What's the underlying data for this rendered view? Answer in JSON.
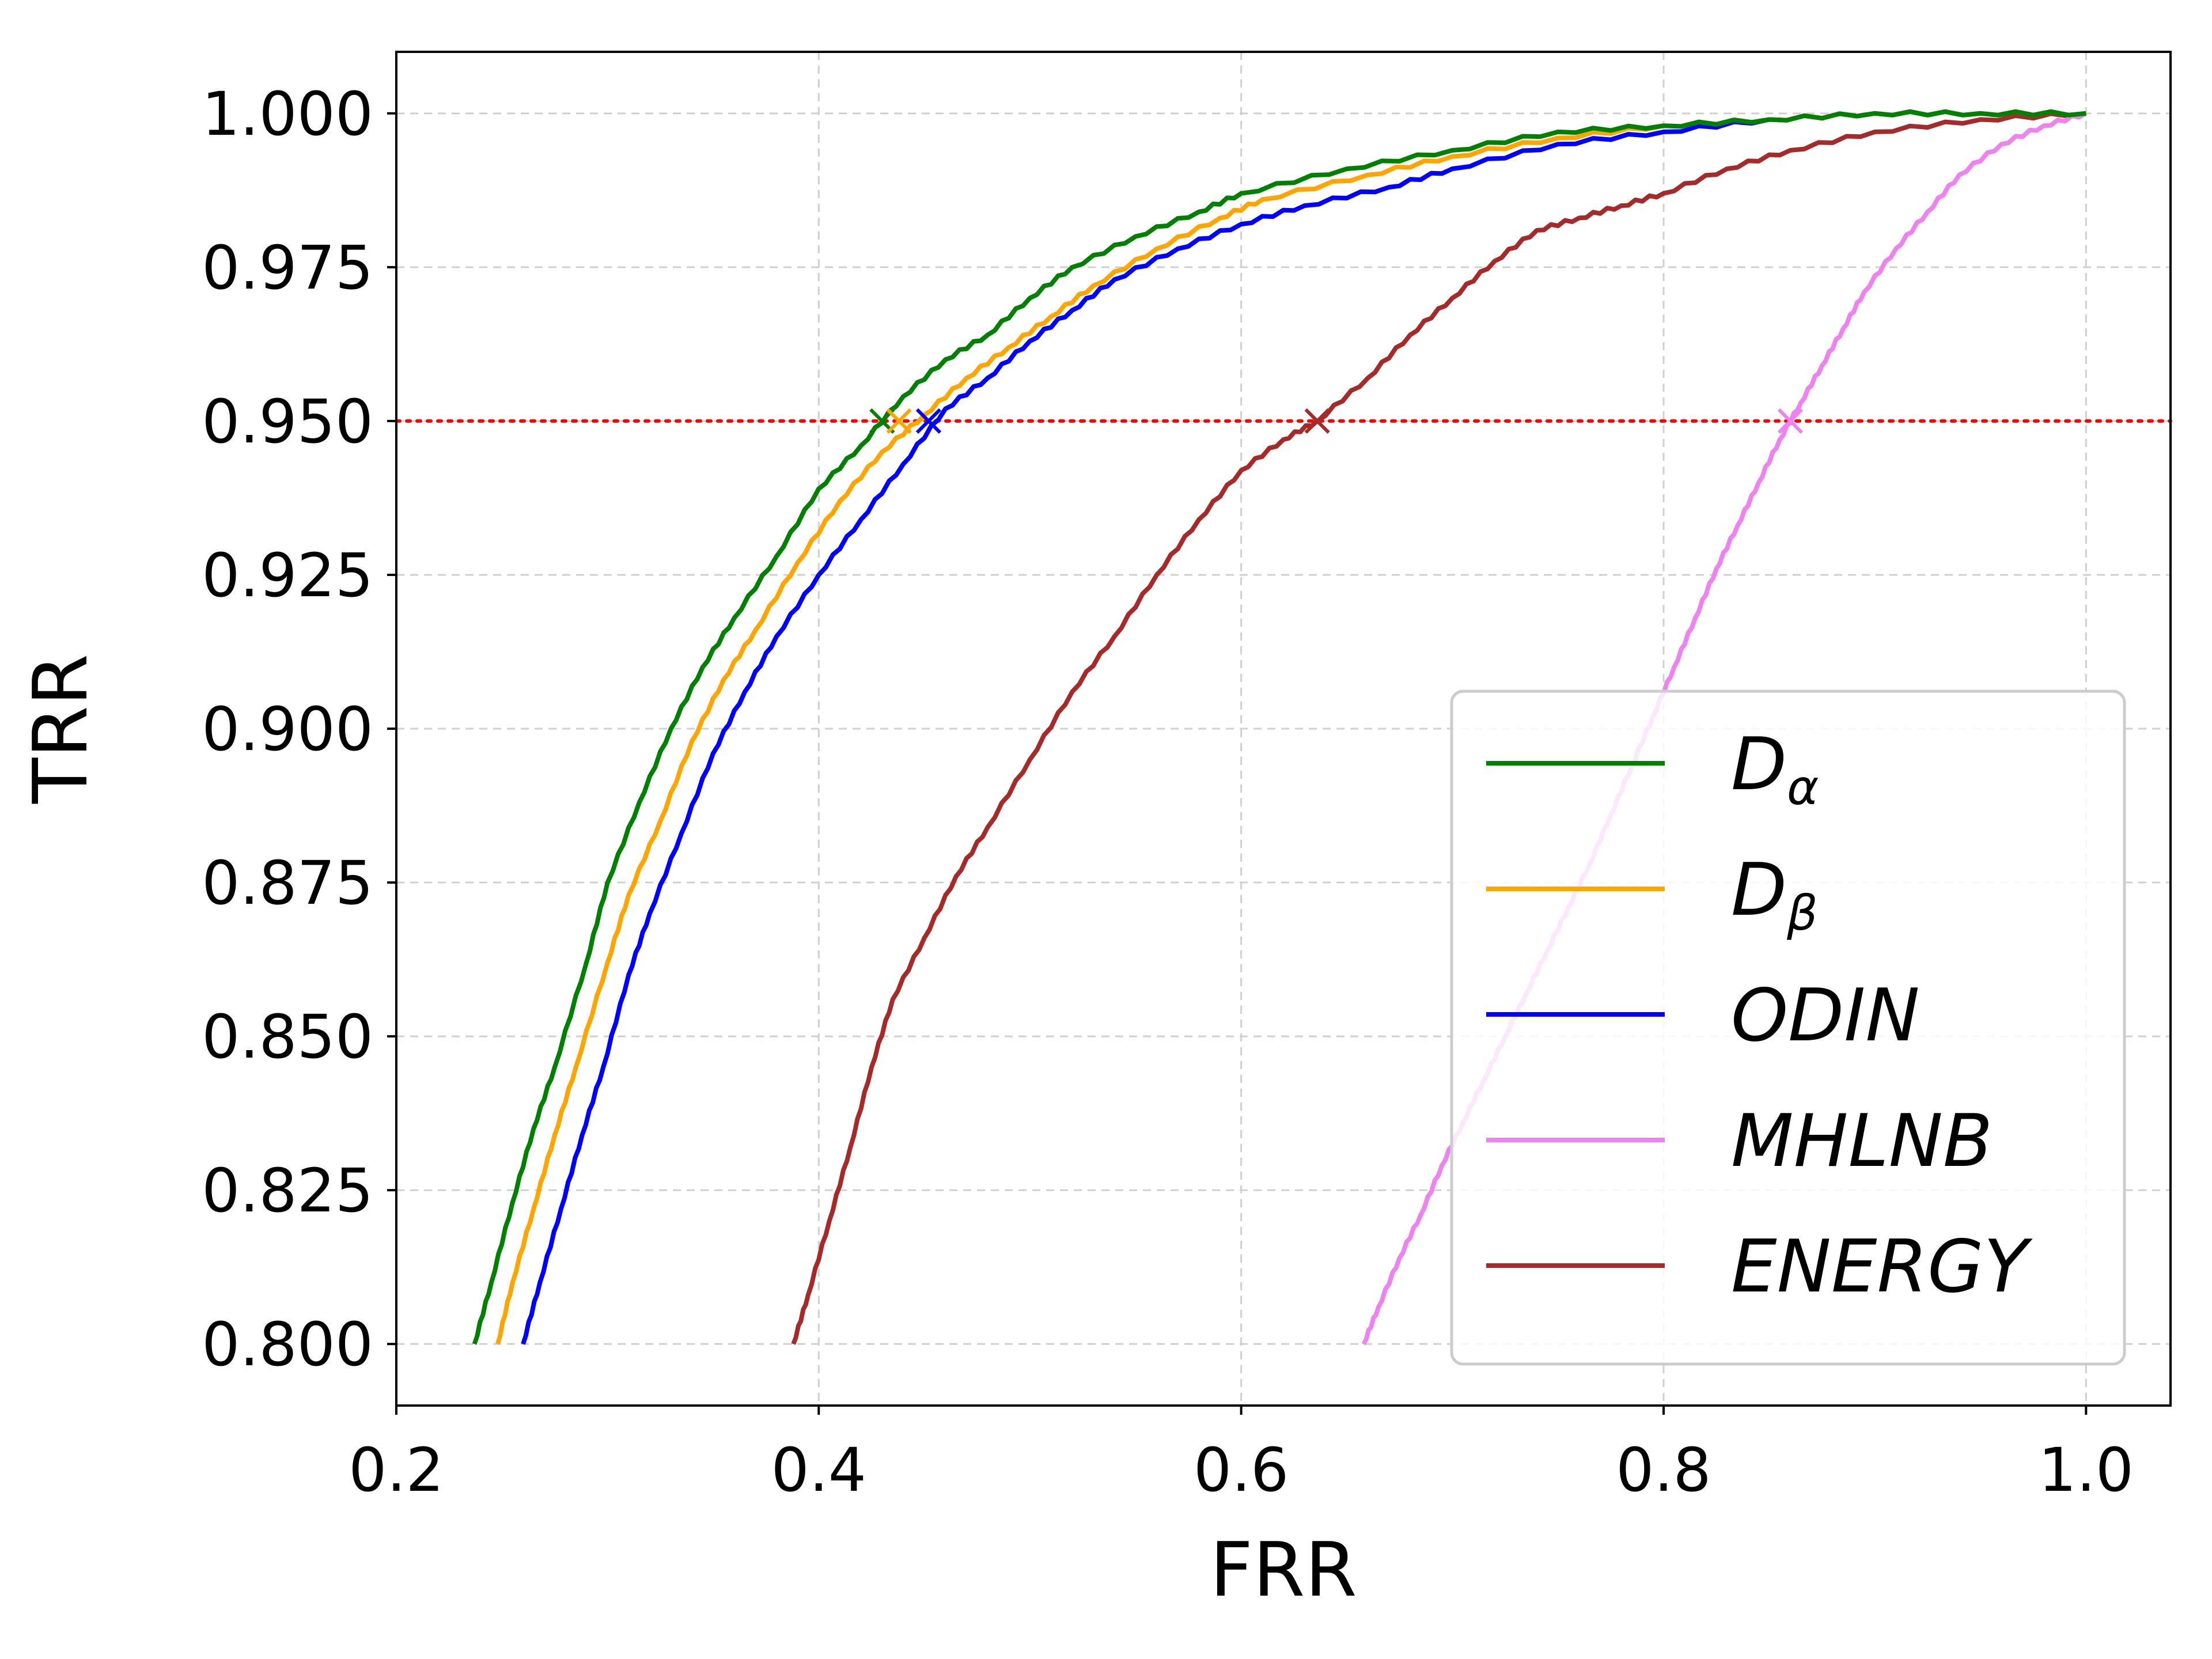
{
  "chart_data": {
    "type": "line",
    "title": "",
    "xlabel": "FRR",
    "ylabel": "TRR",
    "xlim": [
      0.2,
      1.04
    ],
    "ylim": [
      0.79,
      1.01
    ],
    "x_ticks": [
      0.2,
      0.4,
      0.6,
      0.8,
      1.0
    ],
    "x_tick_labels": [
      "0.2",
      "0.4",
      "0.6",
      "0.8",
      "1.0"
    ],
    "y_ticks": [
      0.8,
      0.825,
      0.85,
      0.875,
      0.9,
      0.925,
      0.95,
      0.975,
      1.0
    ],
    "y_tick_labels": [
      "0.800",
      "0.825",
      "0.850",
      "0.875",
      "0.900",
      "0.925",
      "0.950",
      "0.975",
      "1.000"
    ],
    "grid": true,
    "legend_position": "lower-right",
    "reference_line": {
      "y": 0.95,
      "color": "#ff0000",
      "style": "dotted"
    },
    "series": [
      {
        "name": "D_α",
        "legend_main": "D",
        "legend_sub": "α",
        "color": "#008000",
        "marker_x": 0.43,
        "x": [
          0.237,
          0.245,
          0.255,
          0.265,
          0.275,
          0.29,
          0.3,
          0.315,
          0.33,
          0.345,
          0.36,
          0.38,
          0.4,
          0.42,
          0.44,
          0.46,
          0.48,
          0.5,
          0.52,
          0.55,
          0.58,
          0.6,
          0.65,
          0.7,
          0.75,
          0.8,
          0.85,
          0.9,
          0.95,
          1.0
        ],
        "y": [
          0.8,
          0.81,
          0.823,
          0.835,
          0.845,
          0.862,
          0.875,
          0.888,
          0.9,
          0.91,
          0.918,
          0.928,
          0.939,
          0.946,
          0.954,
          0.96,
          0.964,
          0.97,
          0.975,
          0.98,
          0.984,
          0.987,
          0.991,
          0.994,
          0.997,
          0.998,
          0.999,
          1.0,
          1.0,
          1.0
        ]
      },
      {
        "name": "D_β",
        "legend_main": "D",
        "legend_sub": "β",
        "color": "#ffa500",
        "marker_x": 0.438,
        "x": [
          0.248,
          0.255,
          0.265,
          0.275,
          0.285,
          0.3,
          0.31,
          0.325,
          0.34,
          0.355,
          0.37,
          0.39,
          0.41,
          0.43,
          0.45,
          0.47,
          0.49,
          0.51,
          0.53,
          0.56,
          0.59,
          0.61,
          0.66,
          0.7,
          0.75,
          0.8,
          0.85,
          0.9,
          0.95,
          1.0
        ],
        "y": [
          0.8,
          0.81,
          0.822,
          0.834,
          0.845,
          0.862,
          0.873,
          0.885,
          0.898,
          0.908,
          0.916,
          0.927,
          0.937,
          0.945,
          0.951,
          0.957,
          0.962,
          0.967,
          0.972,
          0.978,
          0.983,
          0.986,
          0.99,
          0.993,
          0.996,
          0.998,
          0.999,
          1.0,
          1.0,
          1.0
        ]
      },
      {
        "name": "ODIN",
        "legend_main": "ODIN",
        "legend_sub": "",
        "color": "#0000ff",
        "marker_x": 0.452,
        "x": [
          0.26,
          0.268,
          0.278,
          0.288,
          0.298,
          0.31,
          0.32,
          0.335,
          0.35,
          0.365,
          0.38,
          0.4,
          0.42,
          0.44,
          0.46,
          0.48,
          0.5,
          0.52,
          0.54,
          0.57,
          0.6,
          0.63,
          0.67,
          0.7,
          0.75,
          0.8,
          0.85,
          0.9,
          0.95,
          1.0
        ],
        "y": [
          0.8,
          0.81,
          0.822,
          0.834,
          0.845,
          0.86,
          0.87,
          0.883,
          0.896,
          0.906,
          0.915,
          0.925,
          0.934,
          0.943,
          0.952,
          0.957,
          0.963,
          0.968,
          0.973,
          0.978,
          0.982,
          0.985,
          0.988,
          0.991,
          0.995,
          0.997,
          0.999,
          1.0,
          1.0,
          1.0
        ]
      },
      {
        "name": "MHLNB",
        "legend_main": "MHLNB",
        "legend_sub": "",
        "color": "#ee82ee",
        "marker_x": 0.86,
        "x": [
          0.658,
          0.665,
          0.675,
          0.685,
          0.695,
          0.705,
          0.715,
          0.725,
          0.735,
          0.745,
          0.755,
          0.765,
          0.775,
          0.785,
          0.795,
          0.805,
          0.815,
          0.825,
          0.835,
          0.845,
          0.855,
          0.865,
          0.875,
          0.885,
          0.895,
          0.91,
          0.925,
          0.94,
          0.96,
          0.98,
          1.0
        ],
        "y": [
          0.8,
          0.806,
          0.814,
          0.821,
          0.829,
          0.836,
          0.843,
          0.85,
          0.857,
          0.864,
          0.871,
          0.878,
          0.886,
          0.894,
          0.902,
          0.91,
          0.918,
          0.926,
          0.933,
          0.94,
          0.947,
          0.953,
          0.959,
          0.965,
          0.971,
          0.978,
          0.984,
          0.99,
          0.995,
          0.998,
          1.0
        ]
      },
      {
        "name": "ENERGY",
        "legend_main": "ENERGY",
        "legend_sub": "",
        "color": "#a52a2a",
        "marker_x": 0.636,
        "x": [
          0.388,
          0.395,
          0.405,
          0.415,
          0.425,
          0.435,
          0.45,
          0.465,
          0.48,
          0.5,
          0.52,
          0.54,
          0.56,
          0.58,
          0.6,
          0.62,
          0.636,
          0.66,
          0.68,
          0.7,
          0.72,
          0.74,
          0.76,
          0.78,
          0.8,
          0.83,
          0.86,
          0.9,
          0.95,
          1.0
        ],
        "y": [
          0.8,
          0.808,
          0.82,
          0.832,
          0.845,
          0.856,
          0.866,
          0.876,
          0.884,
          0.895,
          0.906,
          0.915,
          0.925,
          0.934,
          0.942,
          0.947,
          0.95,
          0.957,
          0.964,
          0.97,
          0.976,
          0.981,
          0.983,
          0.985,
          0.987,
          0.991,
          0.994,
          0.997,
          0.999,
          1.0
        ]
      }
    ]
  }
}
